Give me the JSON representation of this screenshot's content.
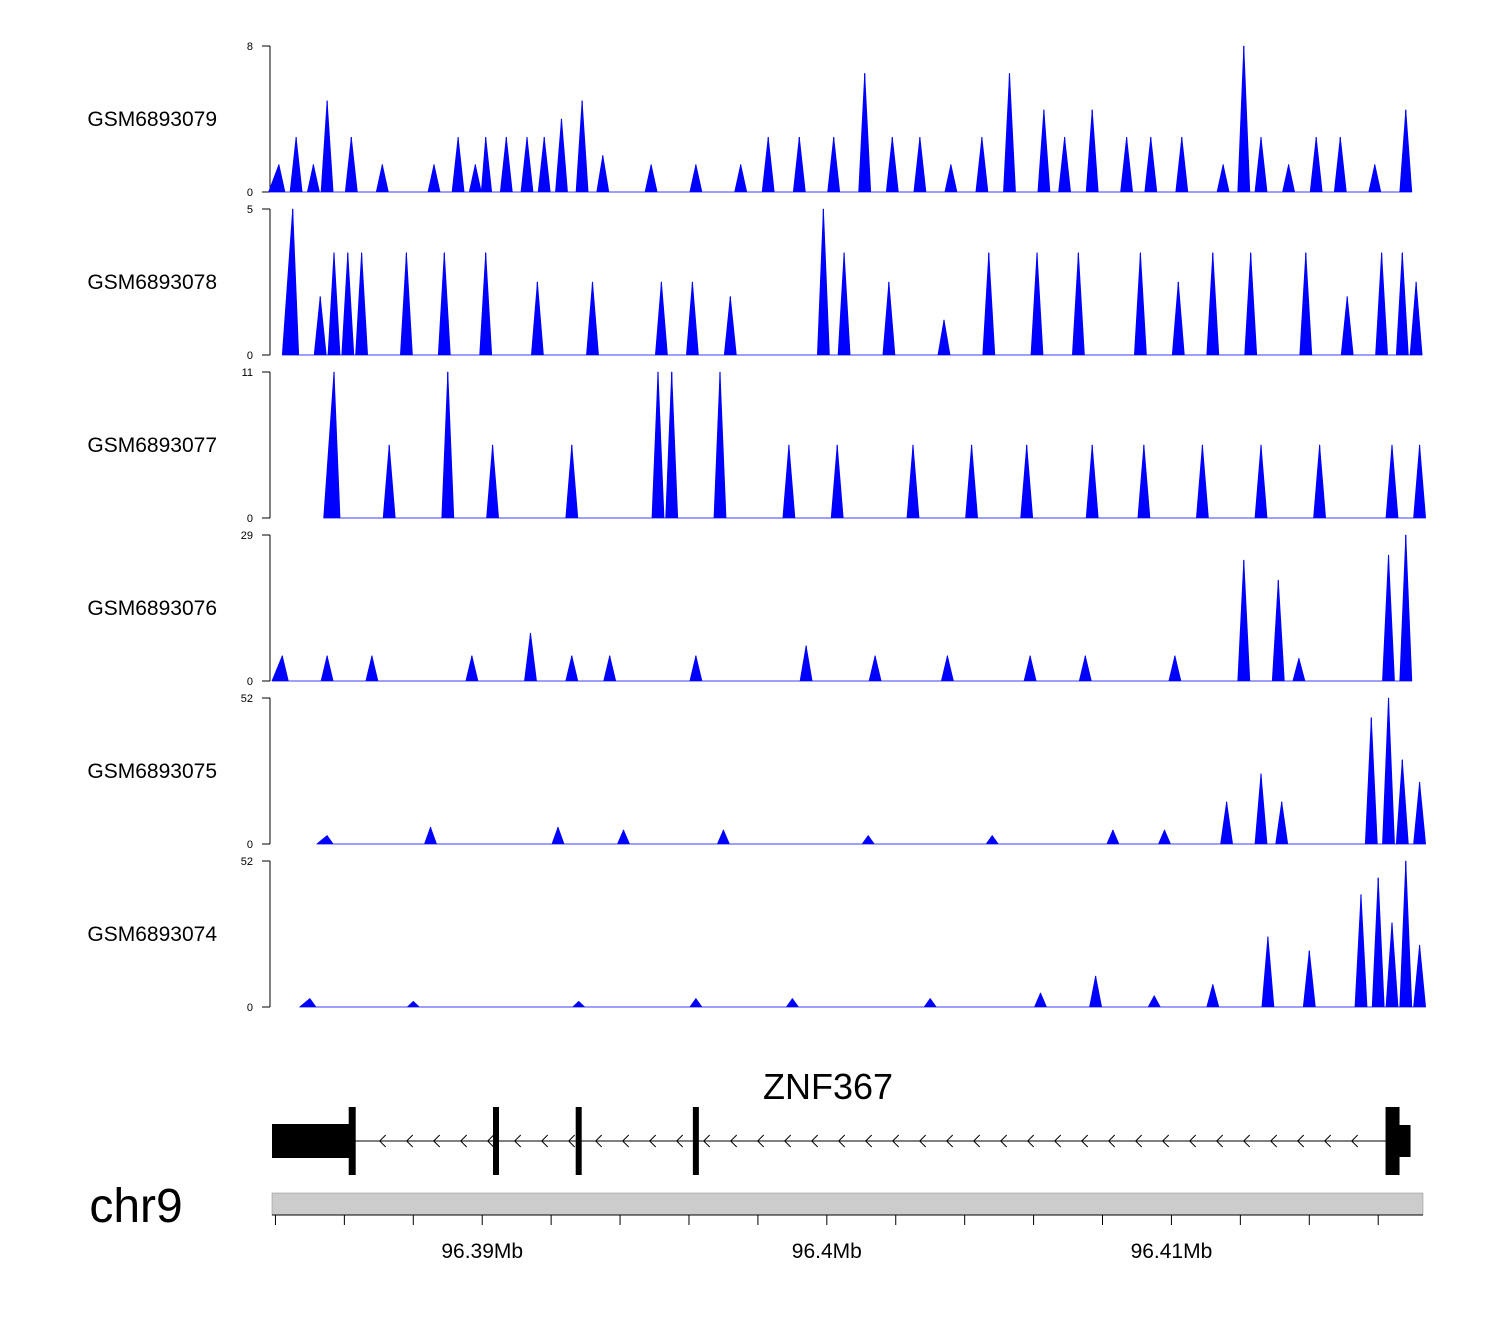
{
  "chart_data": {
    "type": "area",
    "title": "",
    "color": "#0000ff",
    "x_range": [
      96.3839,
      96.4173
    ],
    "x_unit": "Mb",
    "chromosome": "chr9",
    "x_ticks": [
      {
        "value": 96.39,
        "label": "96.39Mb"
      },
      {
        "value": 96.4,
        "label": "96.4Mb"
      },
      {
        "value": 96.41,
        "label": "96.41Mb"
      }
    ],
    "minor_ticks": [
      96.384,
      96.386,
      96.388,
      96.39,
      96.392,
      96.394,
      96.396,
      96.398,
      96.4,
      96.402,
      96.404,
      96.406,
      96.408,
      96.41,
      96.412,
      96.414,
      96.416
    ],
    "tracks": [
      {
        "name": "GSM6893079",
        "ymax": 8,
        "ymax_label": "8",
        "ymin_label": "0",
        "peaks": [
          [
            96.3841,
            1.5
          ],
          [
            96.3846,
            3
          ],
          [
            96.3851,
            1.5
          ],
          [
            96.3855,
            5
          ],
          [
            96.3862,
            3
          ],
          [
            96.3871,
            1.5
          ],
          [
            96.3886,
            1.5
          ],
          [
            96.3893,
            3
          ],
          [
            96.3898,
            1.5
          ],
          [
            96.3901,
            3
          ],
          [
            96.3907,
            3
          ],
          [
            96.3913,
            3
          ],
          [
            96.3918,
            3
          ],
          [
            96.3923,
            4
          ],
          [
            96.3929,
            5
          ],
          [
            96.3935,
            2
          ],
          [
            96.3949,
            1.5
          ],
          [
            96.3962,
            1.5
          ],
          [
            96.3975,
            1.5
          ],
          [
            96.3983,
            3
          ],
          [
            96.3992,
            3
          ],
          [
            96.4002,
            3
          ],
          [
            96.4011,
            6.5
          ],
          [
            96.4019,
            3
          ],
          [
            96.4027,
            3
          ],
          [
            96.4036,
            1.5
          ],
          [
            96.4045,
            3
          ],
          [
            96.4053,
            6.5
          ],
          [
            96.4063,
            4.5
          ],
          [
            96.4069,
            3
          ],
          [
            96.4077,
            4.5
          ],
          [
            96.4087,
            3
          ],
          [
            96.4094,
            3
          ],
          [
            96.4103,
            3
          ],
          [
            96.4115,
            1.5
          ],
          [
            96.4121,
            8
          ],
          [
            96.4126,
            3
          ],
          [
            96.4134,
            1.5
          ],
          [
            96.4142,
            3
          ],
          [
            96.4149,
            3
          ],
          [
            96.4159,
            1.5
          ],
          [
            96.4168,
            4.5
          ]
        ]
      },
      {
        "name": "GSM6893078",
        "ymax": 5,
        "ymax_label": "5",
        "ymin_label": "0",
        "peaks": [
          [
            96.3845,
            5
          ],
          [
            96.3853,
            2
          ],
          [
            96.3857,
            3.5
          ],
          [
            96.3861,
            3.5
          ],
          [
            96.3865,
            3.5
          ],
          [
            96.3878,
            3.5
          ],
          [
            96.3889,
            3.5
          ],
          [
            96.3901,
            3.5
          ],
          [
            96.3916,
            2.5
          ],
          [
            96.3932,
            2.5
          ],
          [
            96.3952,
            2.5
          ],
          [
            96.3961,
            2.5
          ],
          [
            96.3972,
            2
          ],
          [
            96.3999,
            5
          ],
          [
            96.4005,
            3.5
          ],
          [
            96.4018,
            2.5
          ],
          [
            96.4034,
            1.2
          ],
          [
            96.4047,
            3.5
          ],
          [
            96.4061,
            3.5
          ],
          [
            96.4073,
            3.5
          ],
          [
            96.4091,
            3.5
          ],
          [
            96.4102,
            2.5
          ],
          [
            96.4112,
            3.5
          ],
          [
            96.4123,
            3.5
          ],
          [
            96.4139,
            3.5
          ],
          [
            96.4151,
            2
          ],
          [
            96.4161,
            3.5
          ],
          [
            96.4167,
            3.5
          ],
          [
            96.4171,
            2.5
          ]
        ]
      },
      {
        "name": "GSM6893077",
        "ymax": 11,
        "ymax_label": "11",
        "ymin_label": "0",
        "peaks": [
          [
            96.3857,
            11
          ],
          [
            96.3873,
            5.5
          ],
          [
            96.389,
            11
          ],
          [
            96.3903,
            5.5
          ],
          [
            96.3926,
            5.5
          ],
          [
            96.3951,
            11
          ],
          [
            96.3955,
            11
          ],
          [
            96.3969,
            11
          ],
          [
            96.3989,
            5.5
          ],
          [
            96.4003,
            5.5
          ],
          [
            96.4025,
            5.5
          ],
          [
            96.4042,
            5.5
          ],
          [
            96.4058,
            5.5
          ],
          [
            96.4077,
            5.5
          ],
          [
            96.4092,
            5.5
          ],
          [
            96.4109,
            5.5
          ],
          [
            96.4126,
            5.5
          ],
          [
            96.4143,
            5.5
          ],
          [
            96.4164,
            5.5
          ],
          [
            96.4172,
            5.5
          ]
        ]
      },
      {
        "name": "GSM6893076",
        "ymax": 29,
        "ymax_label": "29",
        "ymin_label": "0",
        "peaks": [
          [
            96.3842,
            5
          ],
          [
            96.3855,
            5
          ],
          [
            96.3868,
            5
          ],
          [
            96.3897,
            5
          ],
          [
            96.3914,
            9.5
          ],
          [
            96.3926,
            5
          ],
          [
            96.3937,
            5
          ],
          [
            96.3962,
            5
          ],
          [
            96.3994,
            7
          ],
          [
            96.4014,
            5
          ],
          [
            96.4035,
            5
          ],
          [
            96.4059,
            5
          ],
          [
            96.4075,
            5
          ],
          [
            96.4101,
            5
          ],
          [
            96.4137,
            4.5
          ],
          [
            96.4121,
            24
          ],
          [
            96.4131,
            20
          ],
          [
            96.4163,
            25
          ],
          [
            96.4168,
            29
          ]
        ]
      },
      {
        "name": "GSM6893075",
        "ymax": 52,
        "ymax_label": "52",
        "ymin_label": "0",
        "peaks": [
          [
            96.3855,
            3
          ],
          [
            96.3885,
            6
          ],
          [
            96.3922,
            6
          ],
          [
            96.3941,
            5
          ],
          [
            96.397,
            5
          ],
          [
            96.4012,
            3
          ],
          [
            96.4048,
            3
          ],
          [
            96.4083,
            5
          ],
          [
            96.4098,
            5
          ],
          [
            96.4116,
            15
          ],
          [
            96.4126,
            25
          ],
          [
            96.4132,
            15
          ],
          [
            96.4158,
            45
          ],
          [
            96.4163,
            52
          ],
          [
            96.4167,
            30
          ],
          [
            96.4172,
            22
          ]
        ]
      },
      {
        "name": "GSM6893074",
        "ymax": 52,
        "ymax_label": "52",
        "ymin_label": "0",
        "peaks": [
          [
            96.385,
            3
          ],
          [
            96.388,
            2
          ],
          [
            96.3928,
            2
          ],
          [
            96.3962,
            3
          ],
          [
            96.399,
            3
          ],
          [
            96.403,
            3
          ],
          [
            96.4062,
            5
          ],
          [
            96.4078,
            11
          ],
          [
            96.4095,
            4
          ],
          [
            96.4112,
            8
          ],
          [
            96.4128,
            25
          ],
          [
            96.414,
            20
          ],
          [
            96.4155,
            40
          ],
          [
            96.416,
            46
          ],
          [
            96.4164,
            30
          ],
          [
            96.4168,
            52
          ],
          [
            96.4172,
            22
          ]
        ]
      }
    ],
    "gene": {
      "name": "ZNF367",
      "strand": "-",
      "exons": [
        96.3839,
        96.3863,
        96.3904,
        96.3928,
        96.3962,
        96.4163,
        96.4167
      ]
    }
  }
}
